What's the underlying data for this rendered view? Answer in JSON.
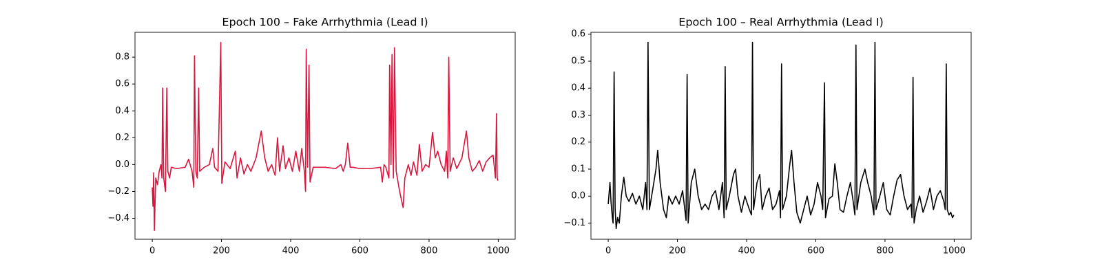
{
  "chart_data": [
    {
      "type": "line",
      "title": "Epoch 100 – Fake Arrhythmia (Lead I)",
      "xlim": [
        -49.95,
        1048.95
      ],
      "ylim": [
        -0.556,
        0.985
      ],
      "xticks": [
        0,
        200,
        400,
        600,
        800,
        1000
      ],
      "yticks": [
        {
          "value": -0.4,
          "label": "−0.4"
        },
        {
          "value": -0.2,
          "label": "−0.2"
        },
        {
          "value": 0,
          "label": "0.0"
        },
        0.2,
        0.4,
        0.6,
        0.8
      ],
      "series": [
        {
          "name": "Fake",
          "color": "#dc143c",
          "x": [
            0,
            2,
            4,
            6,
            10,
            15,
            20,
            25,
            28,
            30,
            33,
            38,
            42,
            45,
            50,
            55,
            70,
            95,
            105,
            115,
            120,
            122,
            126,
            130,
            134,
            137,
            150,
            165,
            175,
            180,
            190,
            198,
            201,
            210,
            225,
            240,
            245,
            255,
            265,
            275,
            285,
            300,
            315,
            325,
            335,
            345,
            355,
            362,
            368,
            378,
            385,
            395,
            405,
            415,
            425,
            432,
            440,
            443,
            445,
            449,
            453,
            456,
            465,
            500,
            530,
            545,
            552,
            558,
            565,
            572,
            580,
            600,
            630,
            660,
            665,
            670,
            675,
            684,
            686,
            690,
            693,
            697,
            700,
            705,
            715,
            725,
            730,
            740,
            748,
            755,
            765,
            772,
            780,
            790,
            800,
            810,
            818,
            825,
            835,
            845,
            850,
            854,
            857,
            861,
            870,
            880,
            895,
            908,
            915,
            925,
            935,
            945,
            955,
            965,
            975,
            985,
            992,
            995,
            997,
            999
          ],
          "values": [
            -0.17,
            -0.31,
            -0.06,
            -0.49,
            -0.1,
            -0.15,
            -0.05,
            0.0,
            -0.1,
            0.57,
            -0.1,
            -0.2,
            0.57,
            -0.05,
            -0.1,
            -0.02,
            -0.03,
            -0.02,
            0.04,
            -0.05,
            -0.17,
            0.81,
            -0.05,
            -0.1,
            0.57,
            -0.05,
            -0.02,
            0.0,
            0.12,
            -0.02,
            -0.05,
            0.91,
            -0.14,
            0.02,
            -0.03,
            0.1,
            -0.1,
            0.05,
            -0.07,
            0.0,
            -0.05,
            0.05,
            0.25,
            0.05,
            -0.05,
            0.0,
            -0.08,
            0.2,
            -0.05,
            0.14,
            -0.03,
            0.05,
            -0.05,
            0.1,
            -0.05,
            0.12,
            -0.06,
            -0.2,
            0.86,
            -0.02,
            0.74,
            -0.13,
            -0.02,
            -0.02,
            -0.03,
            0.0,
            -0.05,
            0.0,
            0.16,
            -0.02,
            -0.02,
            -0.03,
            -0.03,
            -0.02,
            -0.13,
            0.0,
            -0.02,
            -0.1,
            0.74,
            0.0,
            0.82,
            -0.1,
            0.87,
            -0.05,
            -0.2,
            -0.32,
            -0.1,
            0.0,
            -0.08,
            0.02,
            -0.08,
            0.15,
            -0.05,
            0.0,
            -0.02,
            0.24,
            0.05,
            0.1,
            0.0,
            -0.05,
            0.1,
            -0.1,
            0.8,
            -0.05,
            0.05,
            -0.03,
            0.05,
            0.25,
            0.05,
            -0.05,
            -0.02,
            0.03,
            -0.05,
            0.02,
            0.05,
            0.07,
            -0.1,
            0.38,
            -0.1,
            -0.12
          ]
        }
      ]
    },
    {
      "type": "line",
      "title": "Epoch 100 – Real Arrhythmia (Lead I)",
      "xlim": [
        -49.95,
        1048.95
      ],
      "ylim": [
        -0.16,
        0.607
      ],
      "xticks": [
        0,
        200,
        400,
        600,
        800,
        1000
      ],
      "yticks": [
        {
          "value": -0.1,
          "label": "−0.1"
        },
        {
          "value": 0,
          "label": "0.0"
        },
        0.1,
        0.2,
        0.3,
        0.4,
        0.5,
        0.6
      ],
      "series": [
        {
          "name": "Real",
          "color": "#000000",
          "x": [
            0,
            5,
            8,
            12,
            14,
            17,
            20,
            23,
            27,
            32,
            38,
            45,
            52,
            60,
            70,
            80,
            90,
            100,
            108,
            112,
            115,
            119,
            128,
            138,
            143,
            150,
            160,
            168,
            175,
            185,
            195,
            205,
            215,
            225,
            228,
            231,
            240,
            250,
            260,
            270,
            280,
            290,
            300,
            310,
            320,
            330,
            335,
            338,
            341,
            350,
            362,
            368,
            375,
            385,
            395,
            408,
            414,
            417,
            420,
            430,
            438,
            445,
            455,
            465,
            475,
            485,
            495,
            498,
            501,
            504,
            515,
            525,
            530,
            537,
            545,
            555,
            565,
            575,
            585,
            595,
            605,
            615,
            620,
            625,
            628,
            638,
            648,
            655,
            662,
            670,
            680,
            690,
            700,
            708,
            713,
            716,
            719,
            730,
            742,
            750,
            760,
            768,
            771,
            774,
            785,
            795,
            805,
            815,
            825,
            835,
            845,
            855,
            865,
            875,
            878,
            881,
            884,
            890,
            900,
            910,
            920,
            930,
            940,
            950,
            960,
            970,
            974,
            977,
            980,
            985,
            990,
            995,
            999
          ],
          "values": [
            -0.03,
            0.05,
            -0.02,
            -0.08,
            -0.1,
            0.46,
            -0.05,
            -0.12,
            -0.08,
            -0.1,
            0.0,
            0.07,
            0.0,
            -0.02,
            0.01,
            -0.03,
            0.0,
            -0.05,
            0.05,
            -0.05,
            0.57,
            -0.05,
            0.02,
            0.1,
            0.17,
            0.05,
            -0.05,
            -0.08,
            0.0,
            -0.03,
            0.0,
            -0.03,
            0.02,
            -0.09,
            0.45,
            -0.1,
            0.05,
            0.1,
            0.0,
            -0.05,
            -0.03,
            -0.05,
            0.0,
            0.02,
            -0.05,
            0.05,
            -0.08,
            0.48,
            -0.05,
            0.0,
            0.08,
            0.1,
            0.0,
            -0.06,
            0.0,
            -0.05,
            -0.07,
            0.57,
            -0.05,
            0.05,
            0.08,
            -0.05,
            0.0,
            0.03,
            -0.05,
            -0.03,
            0.02,
            -0.08,
            0.49,
            -0.05,
            0.0,
            0.12,
            0.17,
            0.05,
            -0.06,
            -0.1,
            -0.05,
            0.0,
            -0.07,
            -0.03,
            0.05,
            0.0,
            -0.05,
            0.42,
            -0.08,
            -0.01,
            0.0,
            0.12,
            0.05,
            -0.05,
            -0.06,
            0.0,
            0.05,
            -0.02,
            -0.07,
            0.56,
            -0.05,
            0.05,
            0.1,
            0.05,
            0.0,
            -0.07,
            0.57,
            -0.05,
            0.0,
            0.05,
            -0.05,
            -0.07,
            0.0,
            0.06,
            0.08,
            0.0,
            -0.05,
            -0.03,
            -0.08,
            0.44,
            -0.1,
            -0.05,
            0.0,
            -0.06,
            -0.02,
            0.03,
            -0.05,
            0.0,
            0.02,
            -0.02,
            -0.05,
            0.49,
            -0.05,
            -0.07,
            -0.06,
            -0.08,
            -0.07
          ]
        }
      ]
    }
  ]
}
